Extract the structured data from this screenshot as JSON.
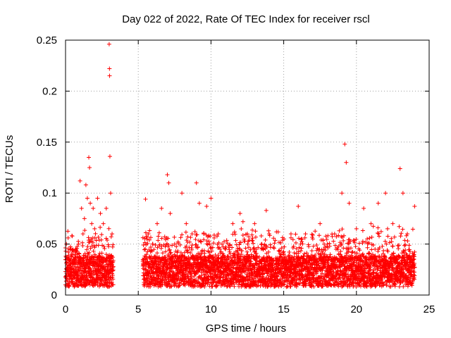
{
  "chart_data": {
    "type": "scatter",
    "title": "Day 022 of 2022, Rate Of TEC Index for receiver rscl",
    "xlabel": "GPS time / hours",
    "ylabel": "ROTI / TECUs",
    "xlim": [
      0,
      25
    ],
    "ylim": [
      0,
      0.25
    ],
    "xticks": [
      0,
      5,
      10,
      15,
      20,
      25
    ],
    "yticks": [
      0,
      0.05,
      0.1,
      0.15,
      0.2,
      0.25
    ],
    "xtick_labels": [
      "0",
      "5",
      "10",
      "15",
      "20",
      "25"
    ],
    "ytick_labels": [
      "0",
      "0.05",
      "0.1",
      "0.15",
      "0.2",
      "0.25"
    ],
    "grid": true,
    "marker": "+",
    "color": "#ff0000",
    "data_gap_hours": [
      3.3,
      5.3
    ],
    "series": [
      {
        "points": [
          [
            0.0,
            0.018
          ],
          [
            0.1,
            0.025
          ],
          [
            0.2,
            0.042
          ],
          [
            0.3,
            0.031
          ],
          [
            0.4,
            0.022
          ],
          [
            0.5,
            0.03
          ],
          [
            0.6,
            0.035
          ],
          [
            0.7,
            0.045
          ],
          [
            0.8,
            0.038
          ],
          [
            0.9,
            0.05
          ],
          [
            1.0,
            0.112
          ],
          [
            1.1,
            0.085
          ],
          [
            1.2,
            0.06
          ],
          [
            1.3,
            0.075
          ],
          [
            1.4,
            0.108
          ],
          [
            1.5,
            0.095
          ],
          [
            1.6,
            0.135
          ],
          [
            1.65,
            0.125
          ],
          [
            1.7,
            0.09
          ],
          [
            1.8,
            0.07
          ],
          [
            1.9,
            0.085
          ],
          [
            2.0,
            0.065
          ],
          [
            2.2,
            0.095
          ],
          [
            2.4,
            0.08
          ],
          [
            2.6,
            0.07
          ],
          [
            2.8,
            0.085
          ],
          [
            3.0,
            0.246
          ],
          [
            3.02,
            0.222
          ],
          [
            3.03,
            0.215
          ],
          [
            3.05,
            0.136
          ],
          [
            3.1,
            0.1
          ],
          [
            3.2,
            0.06
          ],
          [
            5.5,
            0.094
          ],
          [
            5.7,
            0.06
          ],
          [
            6.0,
            0.05
          ],
          [
            6.3,
            0.07
          ],
          [
            6.6,
            0.085
          ],
          [
            7.0,
            0.118
          ],
          [
            7.1,
            0.11
          ],
          [
            7.2,
            0.08
          ],
          [
            7.5,
            0.05
          ],
          [
            8.0,
            0.1
          ],
          [
            8.3,
            0.07
          ],
          [
            8.7,
            0.06
          ],
          [
            9.0,
            0.11
          ],
          [
            9.2,
            0.09
          ],
          [
            9.5,
            0.06
          ],
          [
            9.7,
            0.087
          ],
          [
            10.0,
            0.095
          ],
          [
            10.5,
            0.06
          ],
          [
            11.0,
            0.045
          ],
          [
            11.5,
            0.07
          ],
          [
            12.0,
            0.08
          ],
          [
            12.2,
            0.072
          ],
          [
            12.5,
            0.06
          ],
          [
            13.0,
            0.07
          ],
          [
            13.5,
            0.05
          ],
          [
            13.8,
            0.083
          ],
          [
            14.0,
            0.06
          ],
          [
            14.5,
            0.062
          ],
          [
            15.0,
            0.04
          ],
          [
            15.5,
            0.06
          ],
          [
            16.0,
            0.087
          ],
          [
            16.5,
            0.06
          ],
          [
            17.0,
            0.055
          ],
          [
            17.5,
            0.07
          ],
          [
            18.0,
            0.05
          ],
          [
            18.5,
            0.06
          ],
          [
            19.0,
            0.1
          ],
          [
            19.2,
            0.148
          ],
          [
            19.3,
            0.13
          ],
          [
            19.5,
            0.09
          ],
          [
            20.0,
            0.065
          ],
          [
            20.5,
            0.085
          ],
          [
            21.0,
            0.07
          ],
          [
            21.5,
            0.09
          ],
          [
            22.0,
            0.1
          ],
          [
            22.5,
            0.07
          ],
          [
            23.0,
            0.124
          ],
          [
            23.2,
            0.1
          ],
          [
            23.5,
            0.06
          ],
          [
            24.0,
            0.087
          ]
        ]
      }
    ]
  }
}
